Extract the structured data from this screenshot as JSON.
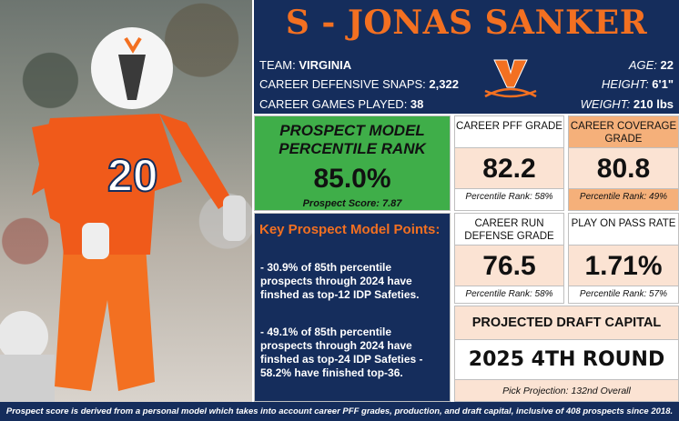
{
  "header": {
    "title": "S - JONAS SANKER",
    "team_label": "TEAM: ",
    "team_value": "VIRGINIA",
    "snaps_label": "CAREER DEFENSIVE SNAPS: ",
    "snaps_value": "2,322",
    "games_label": "CAREER GAMES PLAYED: ",
    "games_value": "38",
    "age_label": "AGE: ",
    "age_value": "22",
    "height_label": "HEIGHT: ",
    "height_value": "6'1\"",
    "weight_label": "WEIGHT: ",
    "weight_value": "210 lbs"
  },
  "prospect_model": {
    "title": "PROSPECT MODEL PERCENTILE RANK",
    "value": "85.0%",
    "score": "Prospect Score: 7.87"
  },
  "stats": [
    {
      "label": "CAREER PFF GRADE",
      "value": "82.2",
      "rank": "Percentile Rank: 58%"
    },
    {
      "label": "CAREER COVERAGE GRADE",
      "value": "80.8",
      "rank": "Percentile Rank: 49%"
    },
    {
      "label": "CAREER RUN DEFENSE GRADE",
      "value": "76.5",
      "rank": "Percentile Rank: 58%"
    },
    {
      "label": "PLAY ON PASS RATE",
      "value": "1.71%",
      "rank": "Percentile Rank: 57%"
    }
  ],
  "key_points": {
    "heading": "Key Prospect Model Points:",
    "points": [
      "- 30.9% of 85th percentile prospects through 2024 have finshed as top-12 IDP Safeties.",
      "- 49.1% of 85th percentile prospects through 2024 have finshed as top-24 IDP Safeties - 58.2% have finished top-36."
    ]
  },
  "draft": {
    "heading": "PROJECTED DRAFT CAPITAL",
    "value": "2025 4TH ROUND",
    "projection": "Pick Projection: 132nd Overall"
  },
  "footer": "Prospect score is derived from a personal model which takes into account career PFF grades, production, and draft capital, inclusive of 408 prospects since 2018.",
  "photo": {
    "jersey_number": "20"
  },
  "colors": {
    "navy": "#152d5c",
    "orange": "#f37021",
    "green": "#3fae49",
    "peach": "#fbe3d3"
  }
}
